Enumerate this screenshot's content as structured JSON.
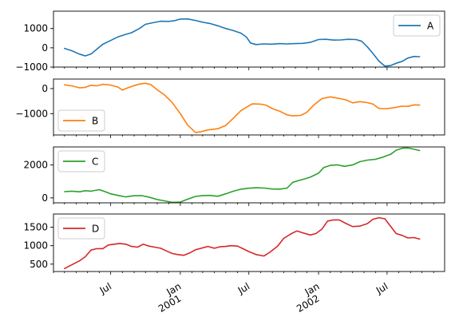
{
  "colors": {
    "A": "#1f77b4",
    "B": "#ff7f0e",
    "C": "#2ca02c",
    "D": "#d62728",
    "axes": "#000000",
    "legend_border": "#cccccc"
  },
  "chart_data": {
    "type": "line",
    "layout": "4 vertically stacked subplots sharing a date x-axis",
    "xlim": [
      "2000-02-01",
      "2002-11-30"
    ],
    "x_tick_labels": [
      {
        "date": "2000-07-01",
        "label": "Jul"
      },
      {
        "date": "2001-01-01",
        "label": "Jan",
        "sublabel": "2001"
      },
      {
        "date": "2001-07-01",
        "label": "Jul"
      },
      {
        "date": "2002-01-01",
        "label": "Jan",
        "sublabel": "2002"
      },
      {
        "date": "2002-07-01",
        "label": "Jul"
      }
    ],
    "x_tick_rotation_deg": 30,
    "grid": false,
    "panels": [
      {
        "series": "A",
        "legend": "top-right",
        "ylim": [
          -1000,
          1900
        ],
        "yticks": [
          {
            "v": 1000,
            "label": "1000"
          },
          {
            "v": 0,
            "label": "0"
          },
          {
            "v": -1000,
            "label": "−1000"
          }
        ],
        "points": [
          [
            "2000-03-01",
            -30
          ],
          [
            "2000-03-20",
            -150
          ],
          [
            "2000-04-10",
            -330
          ],
          [
            "2000-04-25",
            -420
          ],
          [
            "2000-05-10",
            -320
          ],
          [
            "2000-05-25",
            -80
          ],
          [
            "2000-06-10",
            180
          ],
          [
            "2000-07-01",
            380
          ],
          [
            "2000-07-20",
            560
          ],
          [
            "2000-08-10",
            700
          ],
          [
            "2000-08-25",
            780
          ],
          [
            "2000-09-15",
            1000
          ],
          [
            "2000-10-01",
            1220
          ],
          [
            "2000-10-20",
            1300
          ],
          [
            "2000-11-10",
            1380
          ],
          [
            "2000-12-01",
            1370
          ],
          [
            "2000-12-15",
            1400
          ],
          [
            "2001-01-01",
            1490
          ],
          [
            "2001-01-20",
            1500
          ],
          [
            "2001-02-10",
            1420
          ],
          [
            "2001-03-01",
            1330
          ],
          [
            "2001-03-20",
            1260
          ],
          [
            "2001-04-10",
            1140
          ],
          [
            "2001-05-01",
            1000
          ],
          [
            "2001-05-20",
            900
          ],
          [
            "2001-06-10",
            760
          ],
          [
            "2001-06-25",
            550
          ],
          [
            "2001-07-05",
            250
          ],
          [
            "2001-07-20",
            170
          ],
          [
            "2001-08-10",
            200
          ],
          [
            "2001-09-01",
            190
          ],
          [
            "2001-09-20",
            220
          ],
          [
            "2001-10-10",
            200
          ],
          [
            "2001-11-01",
            220
          ],
          [
            "2001-11-20",
            230
          ],
          [
            "2001-12-10",
            280
          ],
          [
            "2002-01-01",
            430
          ],
          [
            "2002-01-20",
            440
          ],
          [
            "2002-02-10",
            400
          ],
          [
            "2002-03-01",
            410
          ],
          [
            "2002-03-20",
            440
          ],
          [
            "2002-04-10",
            430
          ],
          [
            "2002-04-25",
            340
          ],
          [
            "2002-05-10",
            50
          ],
          [
            "2002-05-25",
            -300
          ],
          [
            "2002-06-10",
            -700
          ],
          [
            "2002-06-25",
            -950
          ],
          [
            "2002-07-10",
            -920
          ],
          [
            "2002-07-25",
            -800
          ],
          [
            "2002-08-10",
            -700
          ],
          [
            "2002-08-25",
            -530
          ],
          [
            "2002-09-10",
            -450
          ],
          [
            "2002-09-25",
            -460
          ]
        ]
      },
      {
        "series": "B",
        "legend": "bottom-left",
        "ylim": [
          -1850,
          380
        ],
        "yticks": [
          {
            "v": 0,
            "label": "0"
          },
          {
            "v": -1000,
            "label": "−1000"
          }
        ],
        "points": [
          [
            "2000-03-01",
            150
          ],
          [
            "2000-03-20",
            110
          ],
          [
            "2000-04-10",
            30
          ],
          [
            "2000-04-25",
            50
          ],
          [
            "2000-05-10",
            130
          ],
          [
            "2000-05-25",
            110
          ],
          [
            "2000-06-10",
            170
          ],
          [
            "2000-07-01",
            140
          ],
          [
            "2000-07-20",
            60
          ],
          [
            "2000-08-01",
            -60
          ],
          [
            "2000-08-15",
            30
          ],
          [
            "2000-09-01",
            120
          ],
          [
            "2000-09-15",
            180
          ],
          [
            "2000-10-01",
            210
          ],
          [
            "2000-10-15",
            160
          ],
          [
            "2000-11-01",
            -50
          ],
          [
            "2000-11-20",
            -250
          ],
          [
            "2000-12-10",
            -550
          ],
          [
            "2001-01-01",
            -1000
          ],
          [
            "2001-01-20",
            -1450
          ],
          [
            "2001-02-10",
            -1750
          ],
          [
            "2001-02-25",
            -1720
          ],
          [
            "2001-03-15",
            -1650
          ],
          [
            "2001-04-10",
            -1600
          ],
          [
            "2001-05-01",
            -1470
          ],
          [
            "2001-05-20",
            -1200
          ],
          [
            "2001-06-10",
            -880
          ],
          [
            "2001-06-25",
            -740
          ],
          [
            "2001-07-10",
            -610
          ],
          [
            "2001-08-01",
            -620
          ],
          [
            "2001-08-15",
            -660
          ],
          [
            "2001-09-01",
            -800
          ],
          [
            "2001-09-20",
            -900
          ],
          [
            "2001-10-10",
            -1050
          ],
          [
            "2001-10-25",
            -1090
          ],
          [
            "2001-11-15",
            -1070
          ],
          [
            "2001-12-01",
            -950
          ],
          [
            "2001-12-20",
            -650
          ],
          [
            "2002-01-10",
            -400
          ],
          [
            "2002-02-01",
            -330
          ],
          [
            "2002-02-20",
            -380
          ],
          [
            "2002-03-15",
            -450
          ],
          [
            "2002-04-01",
            -570
          ],
          [
            "2002-04-20",
            -520
          ],
          [
            "2002-05-10",
            -560
          ],
          [
            "2002-05-25",
            -620
          ],
          [
            "2002-06-10",
            -800
          ],
          [
            "2002-07-01",
            -800
          ],
          [
            "2002-07-20",
            -760
          ],
          [
            "2002-08-10",
            -700
          ],
          [
            "2002-08-25",
            -710
          ],
          [
            "2002-09-10",
            -650
          ],
          [
            "2002-09-25",
            -660
          ]
        ]
      },
      {
        "series": "C",
        "legend": "top-left",
        "ylim": [
          -300,
          3100
        ],
        "yticks": [
          {
            "v": 2000,
            "label": "2000"
          },
          {
            "v": 0,
            "label": "0"
          }
        ],
        "points": [
          [
            "2000-03-01",
            380
          ],
          [
            "2000-03-20",
            410
          ],
          [
            "2000-04-10",
            370
          ],
          [
            "2000-04-25",
            440
          ],
          [
            "2000-05-10",
            410
          ],
          [
            "2000-06-01",
            500
          ],
          [
            "2000-06-15",
            390
          ],
          [
            "2000-07-01",
            250
          ],
          [
            "2000-07-20",
            150
          ],
          [
            "2000-08-10",
            60
          ],
          [
            "2000-09-01",
            130
          ],
          [
            "2000-09-20",
            140
          ],
          [
            "2000-10-10",
            50
          ],
          [
            "2000-11-01",
            -100
          ],
          [
            "2000-11-20",
            -180
          ],
          [
            "2000-12-10",
            -270
          ],
          [
            "2001-01-01",
            -250
          ],
          [
            "2001-01-20",
            -80
          ],
          [
            "2001-02-10",
            90
          ],
          [
            "2001-03-01",
            140
          ],
          [
            "2001-03-20",
            150
          ],
          [
            "2001-04-10",
            100
          ],
          [
            "2001-05-01",
            250
          ],
          [
            "2001-05-20",
            400
          ],
          [
            "2001-06-10",
            530
          ],
          [
            "2001-07-01",
            590
          ],
          [
            "2001-07-20",
            620
          ],
          [
            "2001-08-10",
            600
          ],
          [
            "2001-09-01",
            540
          ],
          [
            "2001-09-20",
            530
          ],
          [
            "2001-10-10",
            600
          ],
          [
            "2001-10-25",
            950
          ],
          [
            "2001-11-10",
            1060
          ],
          [
            "2001-11-25",
            1150
          ],
          [
            "2001-12-10",
            1260
          ],
          [
            "2002-01-01",
            1500
          ],
          [
            "2002-01-15",
            1850
          ],
          [
            "2002-02-01",
            1980
          ],
          [
            "2002-02-20",
            2010
          ],
          [
            "2002-03-10",
            1920
          ],
          [
            "2002-04-01",
            2000
          ],
          [
            "2002-04-20",
            2200
          ],
          [
            "2002-05-10",
            2300
          ],
          [
            "2002-06-01",
            2350
          ],
          [
            "2002-06-20",
            2480
          ],
          [
            "2002-07-10",
            2650
          ],
          [
            "2002-07-25",
            2900
          ],
          [
            "2002-08-10",
            3020
          ],
          [
            "2002-08-25",
            3030
          ],
          [
            "2002-09-10",
            2960
          ],
          [
            "2002-09-25",
            2880
          ]
        ]
      },
      {
        "series": "D",
        "legend": "top-left",
        "ylim": [
          300,
          1860
        ],
        "yticks": [
          {
            "v": 1500,
            "label": "1500"
          },
          {
            "v": 1000,
            "label": "1000"
          },
          {
            "v": 500,
            "label": "500"
          }
        ],
        "points": [
          [
            "2000-03-01",
            380
          ],
          [
            "2000-03-20",
            480
          ],
          [
            "2000-04-10",
            590
          ],
          [
            "2000-04-25",
            700
          ],
          [
            "2000-05-10",
            880
          ],
          [
            "2000-05-25",
            920
          ],
          [
            "2000-06-10",
            920
          ],
          [
            "2000-06-25",
            1020
          ],
          [
            "2000-07-10",
            1040
          ],
          [
            "2000-07-25",
            1060
          ],
          [
            "2000-08-10",
            1040
          ],
          [
            "2000-08-25",
            980
          ],
          [
            "2000-09-10",
            960
          ],
          [
            "2000-09-25",
            1040
          ],
          [
            "2000-10-10",
            990
          ],
          [
            "2000-10-25",
            960
          ],
          [
            "2000-11-10",
            930
          ],
          [
            "2000-11-25",
            860
          ],
          [
            "2000-12-10",
            790
          ],
          [
            "2000-12-25",
            760
          ],
          [
            "2001-01-10",
            740
          ],
          [
            "2001-01-25",
            800
          ],
          [
            "2001-02-10",
            890
          ],
          [
            "2001-02-25",
            930
          ],
          [
            "2001-03-15",
            980
          ],
          [
            "2001-04-01",
            930
          ],
          [
            "2001-04-15",
            970
          ],
          [
            "2001-05-01",
            980
          ],
          [
            "2001-05-15",
            1000
          ],
          [
            "2001-06-01",
            990
          ],
          [
            "2001-06-15",
            920
          ],
          [
            "2001-07-01",
            840
          ],
          [
            "2001-07-20",
            760
          ],
          [
            "2001-08-10",
            720
          ],
          [
            "2001-08-25",
            820
          ],
          [
            "2001-09-15",
            990
          ],
          [
            "2001-10-01",
            1200
          ],
          [
            "2001-10-20",
            1320
          ],
          [
            "2001-11-05",
            1400
          ],
          [
            "2001-11-20",
            1350
          ],
          [
            "2001-12-10",
            1290
          ],
          [
            "2001-12-25",
            1330
          ],
          [
            "2002-01-10",
            1450
          ],
          [
            "2002-01-25",
            1670
          ],
          [
            "2002-02-10",
            1700
          ],
          [
            "2002-02-25",
            1700
          ],
          [
            "2002-03-15",
            1600
          ],
          [
            "2002-04-01",
            1520
          ],
          [
            "2002-04-20",
            1530
          ],
          [
            "2002-05-10",
            1600
          ],
          [
            "2002-05-25",
            1720
          ],
          [
            "2002-06-10",
            1760
          ],
          [
            "2002-06-25",
            1730
          ],
          [
            "2002-07-10",
            1530
          ],
          [
            "2002-07-25",
            1330
          ],
          [
            "2002-08-10",
            1280
          ],
          [
            "2002-08-25",
            1210
          ],
          [
            "2002-09-10",
            1220
          ],
          [
            "2002-09-25",
            1180
          ]
        ]
      }
    ]
  }
}
